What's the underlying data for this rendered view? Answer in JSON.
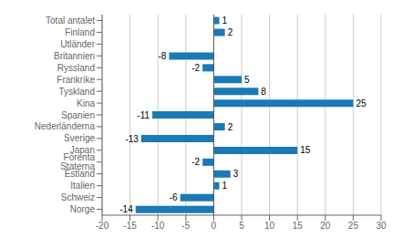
{
  "chart_data": {
    "type": "bar",
    "orientation": "horizontal",
    "categories": [
      "Norge",
      "Schweiz",
      "Italien",
      "Estland",
      "Förenta Staterna",
      "Japan",
      "Sverige",
      "Nederländerna",
      "Spanien",
      "Kina",
      "Tyskland",
      "Frankrike",
      "Ryssland",
      "Britannien",
      "Utländer",
      "Finland",
      "Total antalet"
    ],
    "values": [
      -14,
      -6,
      1,
      3,
      -2,
      15,
      -13,
      2,
      -11,
      25,
      8,
      5,
      -2,
      -8,
      0,
      2,
      1
    ],
    "color": "#1a7ab5",
    "xlim": [
      -20,
      30
    ],
    "xticks": [
      -20,
      -15,
      -10,
      -5,
      0,
      5,
      10,
      15,
      20,
      25,
      30
    ],
    "grid": true,
    "data_labels": true
  }
}
